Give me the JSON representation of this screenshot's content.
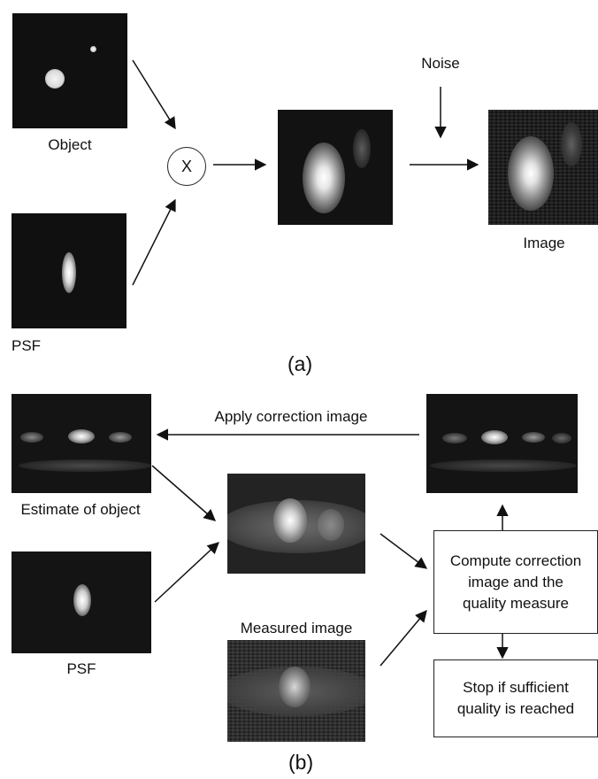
{
  "part_a": {
    "caption": "(a)",
    "object_label": "Object",
    "psf_label": "PSF",
    "multiply_symbol": "X",
    "noise_label": "Noise",
    "image_label": "Image"
  },
  "part_b": {
    "caption": "(b)",
    "apply_correction_label": "Apply correction image",
    "estimate_label": "Estimate of object",
    "psf_label": "PSF",
    "measured_label": "Measured image",
    "compute_box": "Compute correction\nimage and the\nquality measure",
    "stop_box": "Stop if sufficient\nquality is reached"
  }
}
